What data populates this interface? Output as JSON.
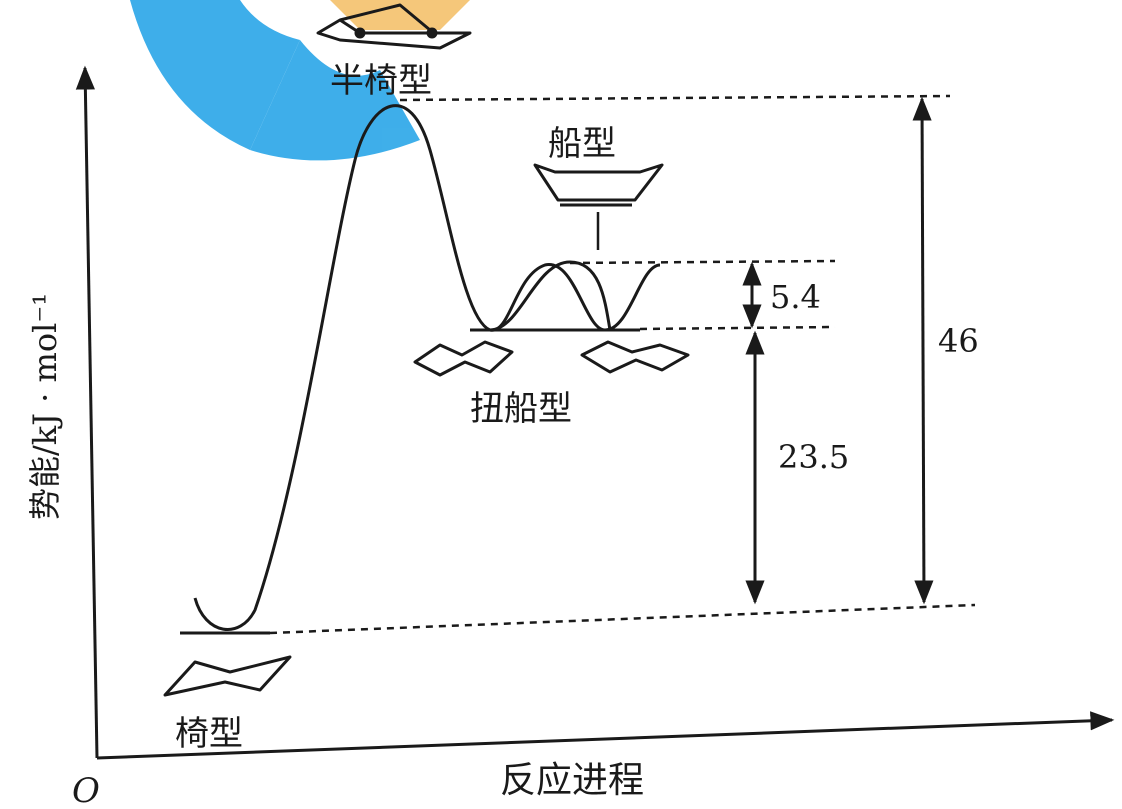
{
  "diagram": {
    "y_axis_label": "势能/kJ · mol⁻¹",
    "x_axis_label": "反应进程",
    "origin_label": "O",
    "colors": {
      "ink": "#1a1a1a",
      "watermark": "#2aa6e8",
      "watermark_accent": "#f5c16c"
    }
  },
  "conformations": {
    "chair": "椅型",
    "half_chair": "半椅型",
    "twist_boat": "扭船型",
    "boat": "船型"
  },
  "energy_gaps": {
    "boat_minus_twist_boat": "5.4",
    "twist_boat_minus_chair": "23.5",
    "half_chair_minus_chair": "46"
  }
}
